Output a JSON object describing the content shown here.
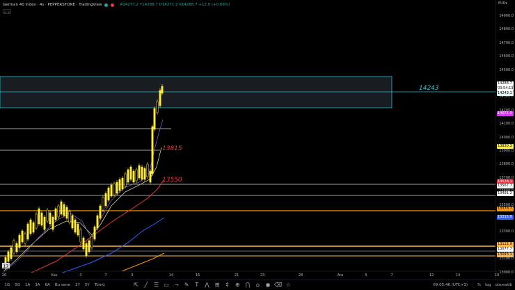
{
  "header": {
    "title": "German 40 Index · 4s · PEPPERSTONE · TradingView",
    "ohlc": "A14277.2 Y14288.7 D14271.2 K14288.7 +12.0 (+0.08%)",
    "dot1_color": "#26a69a",
    "dot2_color": "#f23645",
    "collapse_label": "⌄ ⌄"
  },
  "currency": "EUR▾",
  "price_axis": {
    "labels": [
      "14900.0",
      "14800.0",
      "14700.0",
      "14600.0",
      "14500.0",
      "14400.0",
      "14300.0",
      "14200.0",
      "14100.0",
      "14000.0",
      "13900.0",
      "13800.0",
      "13700.0",
      "13600.0",
      "13500.0",
      "13400.0",
      "13300.0",
      "13200.0",
      "13100.0",
      "13000.0"
    ],
    "tags": [
      {
        "text": "14288.7",
        "bg": "#ffffff"
      },
      {
        "text": "03:54:13",
        "bg": "#ffffff"
      },
      {
        "text": "14243.1",
        "bg": "#e0f7f4"
      },
      {
        "text": "14071.0",
        "bg": "#d53cf0"
      },
      {
        "text": "13830.3",
        "bg": "#ffeb3b"
      },
      {
        "text": "13576.1",
        "bg": "#f23645"
      },
      {
        "text": "13567.7",
        "bg": "#ffffff"
      },
      {
        "text": "13491.2",
        "bg": "#ffffff"
      },
      {
        "text": "13378.7",
        "bg": "#ff9800"
      },
      {
        "text": "13315.8",
        "bg": "#2962ff"
      },
      {
        "text": "13112.9",
        "bg": "#ffb74d"
      },
      {
        "text": "13077.7",
        "bg": "#ffffff"
      },
      {
        "text": "13043.1",
        "bg": "#ffb74d"
      }
    ]
  },
  "annotations": {
    "level_1": "14243",
    "level_2": "13815",
    "level_3": "13550"
  },
  "time_axis": [
    "26",
    "Kas",
    "3",
    "7",
    "9",
    "14",
    "16",
    "21",
    "23",
    "28",
    "Ara",
    "5",
    "7",
    "12",
    "14",
    "19"
  ],
  "bottom_bar": {
    "timeframes": [
      "1G",
      "5G",
      "1A",
      "3A",
      "6A",
      "Bu sene",
      "1Y",
      "5Y",
      "Tümü"
    ],
    "clock": "09:05:46 (UTC+3)",
    "percent": "%",
    "log": "log",
    "auto": "otomatik"
  },
  "tools": [
    {
      "name": "cursor-icon",
      "glyph": "⇱"
    },
    {
      "name": "trendline-icon",
      "glyph": "╱"
    },
    {
      "name": "fib-icon",
      "glyph": "☰"
    },
    {
      "name": "rectangle-icon",
      "glyph": "▭"
    },
    {
      "name": "path-icon",
      "glyph": "⤳"
    },
    {
      "name": "brush-icon",
      "glyph": "✎"
    },
    {
      "name": "text-icon",
      "glyph": "T"
    },
    {
      "name": "pattern-icon",
      "glyph": "⋀"
    },
    {
      "name": "projection-icon",
      "glyph": "⊞"
    },
    {
      "name": "measure-icon",
      "glyph": "⇕"
    },
    {
      "name": "zoom-icon",
      "glyph": "⊕"
    },
    {
      "name": "magnet-icon",
      "glyph": "⋂"
    },
    {
      "name": "lock-icon",
      "glyph": "⌂"
    },
    {
      "name": "eye-icon",
      "glyph": "◉"
    },
    {
      "name": "trash-icon",
      "glyph": "⌫"
    },
    {
      "name": "star-icon",
      "glyph": "☆"
    }
  ]
}
